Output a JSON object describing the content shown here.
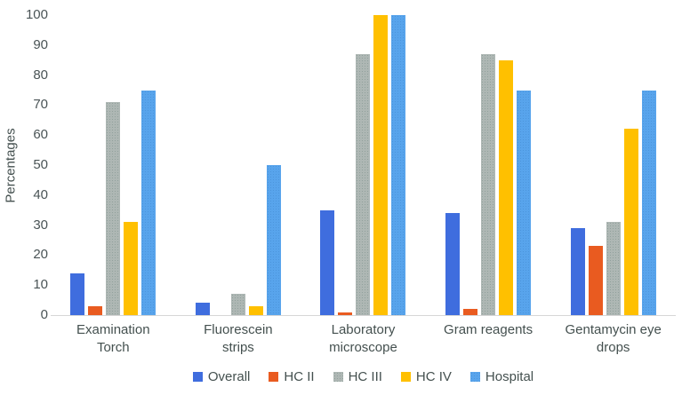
{
  "chart_data": {
    "type": "bar",
    "title": "",
    "xlabel": "",
    "ylabel": "Percentages",
    "ylim": [
      0,
      100
    ],
    "yticks": [
      0,
      10,
      20,
      30,
      40,
      50,
      60,
      70,
      80,
      90,
      100
    ],
    "grid": false,
    "legend_position": "bottom",
    "axis_line_color": "#d6d6d6",
    "categories": [
      "Examination Torch",
      "Fluorescein strips",
      "Laboratory microscope",
      "Gram reagents",
      "Gentamycin eye drops"
    ],
    "series": [
      {
        "name": "Overall",
        "color": "#3f6dde",
        "values": [
          14,
          4,
          35,
          34,
          29
        ]
      },
      {
        "name": "HC II",
        "color": "#e95b20",
        "values": [
          3,
          0,
          1,
          2,
          23
        ]
      },
      {
        "name": "HC III",
        "color": "#aeb7b4",
        "values": [
          71,
          7,
          87,
          87,
          31
        ]
      },
      {
        "name": "HC IV",
        "color": "#ffc000",
        "values": [
          31,
          3,
          100,
          85,
          62
        ]
      },
      {
        "name": "Hospital",
        "color": "#58a4ec",
        "values": [
          75,
          50,
          100,
          75,
          75
        ]
      }
    ]
  }
}
